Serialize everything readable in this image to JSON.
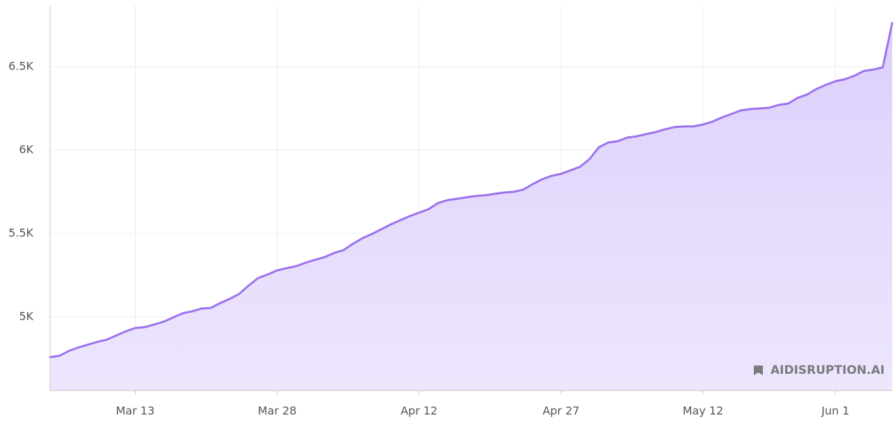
{
  "chart_data": {
    "type": "area",
    "color": "#9d72ee",
    "fill": "#e2d6fd",
    "grid": true,
    "watermark": "AIDISRUPTION.AI",
    "categories": [
      null,
      null,
      null,
      null,
      null,
      null,
      null,
      null,
      null,
      "Mar 13",
      null,
      null,
      null,
      null,
      null,
      null,
      null,
      null,
      null,
      null,
      null,
      null,
      null,
      null,
      "Mar 28",
      null,
      null,
      null,
      null,
      null,
      null,
      null,
      null,
      null,
      null,
      null,
      null,
      null,
      null,
      "Apr 12",
      null,
      null,
      null,
      null,
      null,
      null,
      null,
      null,
      null,
      null,
      null,
      null,
      null,
      null,
      "Apr 27",
      null,
      null,
      null,
      null,
      null,
      null,
      null,
      null,
      null,
      null,
      null,
      null,
      null,
      null,
      "May 12",
      null,
      null,
      null,
      null,
      null,
      null,
      null,
      null,
      null,
      null,
      null,
      null,
      null,
      "Jun 1",
      null,
      null,
      null,
      null,
      null,
      null
    ],
    "values": [
      4758,
      4767,
      4796,
      4817,
      4833,
      4850,
      4863,
      4888,
      4913,
      4933,
      4938,
      4954,
      4971,
      4996,
      5021,
      5033,
      5050,
      5054,
      5083,
      5108,
      5138,
      5188,
      5233,
      5254,
      5279,
      5292,
      5304,
      5325,
      5342,
      5358,
      5383,
      5400,
      5438,
      5471,
      5496,
      5525,
      5554,
      5579,
      5604,
      5625,
      5646,
      5683,
      5700,
      5708,
      5717,
      5725,
      5729,
      5738,
      5746,
      5750,
      5763,
      5796,
      5825,
      5846,
      5858,
      5879,
      5900,
      5946,
      6017,
      6046,
      6054,
      6075,
      6083,
      6096,
      6108,
      6125,
      6138,
      6142,
      6142,
      6154,
      6171,
      6196,
      6217,
      6238,
      6246,
      6250,
      6254,
      6271,
      6279,
      6313,
      6333,
      6367,
      6392,
      6413,
      6425,
      6446,
      6475,
      6483,
      6496,
      6763
    ],
    "ylim": [
      4558,
      6867
    ],
    "yticks": [
      {
        "value": 5000,
        "label": "5K"
      },
      {
        "value": 5500,
        "label": "5.5K"
      },
      {
        "value": 6000,
        "label": "6K"
      },
      {
        "value": 6500,
        "label": "6.5K"
      }
    ]
  }
}
